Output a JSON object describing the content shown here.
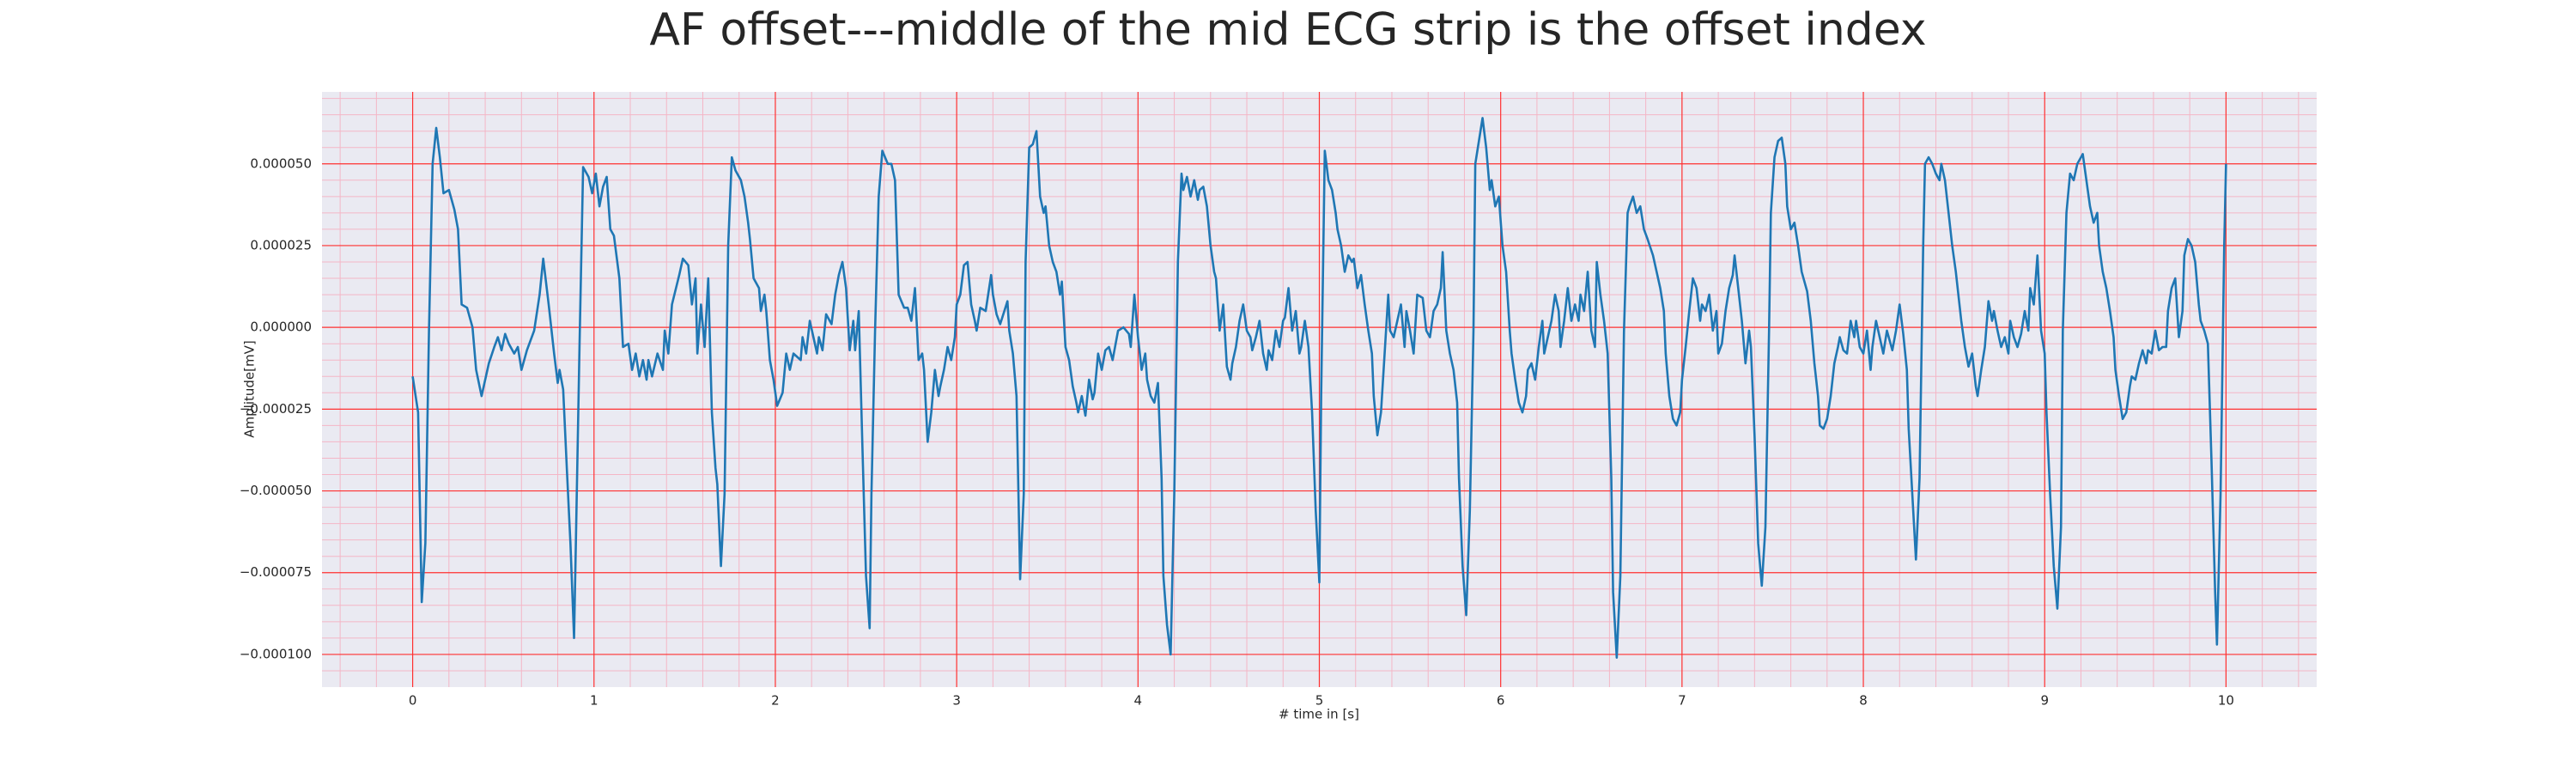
{
  "chart_data": {
    "type": "line",
    "title": "AF offset---middle of the mid ECG strip is the offset index",
    "xlabel": "# time in [s]",
    "ylabel": "Amplitude[mV]",
    "color": "#1f77b4",
    "grid": true,
    "xlim": [
      -0.5,
      10.5
    ],
    "ylim": [
      -0.00011,
      7.2e-05
    ],
    "xticks": [
      0,
      1,
      2,
      3,
      4,
      5,
      6,
      7,
      8,
      9,
      10
    ],
    "yticks": [
      {
        "value": -0.0001,
        "label": "−0.000100"
      },
      {
        "value": -7.5e-05,
        "label": "−0.000075"
      },
      {
        "value": -5e-05,
        "label": "−0.000050"
      },
      {
        "value": -2.5e-05,
        "label": "−0.000025"
      },
      {
        "value": 0,
        "label": "0.000000"
      },
      {
        "value": 2.5e-05,
        "label": "0.000025"
      },
      {
        "value": 5e-05,
        "label": "0.000050"
      }
    ],
    "minor_xticks": [
      -0.4,
      -0.2,
      0.2,
      0.4,
      0.6,
      0.8,
      1.2,
      1.4,
      1.6,
      1.8,
      2.2,
      2.4,
      2.6,
      2.8,
      3.2,
      3.4,
      3.6,
      3.8,
      4.2,
      4.4,
      4.6,
      4.8,
      5.2,
      5.4,
      5.6,
      5.8,
      6.2,
      6.4,
      6.6,
      6.8,
      7.2,
      7.4,
      7.6,
      7.8,
      8.2,
      8.4,
      8.6,
      8.8,
      9.2,
      9.4,
      9.6,
      9.8,
      10.2,
      10.4
    ],
    "minor_yticks": [
      -0.000105,
      -9.5e-05,
      -9e-05,
      -8.5e-05,
      -8e-05,
      -7e-05,
      -6.5e-05,
      -6e-05,
      -5.5e-05,
      -4.5e-05,
      -4e-05,
      -3.5e-05,
      -3e-05,
      -2e-05,
      -1.5e-05,
      -1e-05,
      -5e-06,
      5e-06,
      1e-05,
      1.5e-05,
      2e-05,
      3e-05,
      3.5e-05,
      4e-05,
      4.5e-05,
      5.5e-05,
      6e-05,
      6.5e-05,
      7e-05
    ],
    "x": [
      0,
      0.03,
      0.05,
      0.07,
      0.09,
      0.11,
      0.13,
      0.15,
      0.17,
      0.2,
      0.23,
      0.25,
      0.27,
      0.3,
      0.33,
      0.35,
      0.38,
      0.42,
      0.45,
      0.47,
      0.49,
      0.51,
      0.53,
      0.56,
      0.58,
      0.6,
      0.63,
      0.67,
      0.7,
      0.72,
      0.75,
      0.78,
      0.8,
      0.81,
      0.83,
      0.85,
      0.87,
      0.89,
      0.9,
      0.92,
      0.94,
      0.97,
      0.99,
      1.01,
      1.03,
      1.05,
      1.07,
      1.09,
      1.11,
      1.14,
      1.16,
      1.19,
      1.21,
      1.23,
      1.25,
      1.27,
      1.29,
      1.3,
      1.32,
      1.35,
      1.38,
      1.39,
      1.41,
      1.43,
      1.47,
      1.49,
      1.52,
      1.54,
      1.56,
      1.57,
      1.59,
      1.61,
      1.63,
      1.65,
      1.67,
      1.68,
      1.7,
      1.72,
      1.74,
      1.76,
      1.78,
      1.81,
      1.83,
      1.85,
      1.86,
      1.88,
      1.91,
      1.92,
      1.94,
      1.95,
      1.97,
      1.99,
      2.01,
      2.04,
      2.06,
      2.08,
      2.1,
      2.14,
      2.15,
      2.17,
      2.19,
      2.21,
      2.23,
      2.24,
      2.26,
      2.28,
      2.31,
      2.33,
      2.35,
      2.37,
      2.39,
      2.41,
      2.43,
      2.44,
      2.46,
      2.48,
      2.5,
      2.52,
      2.53,
      2.55,
      2.57,
      2.59,
      2.62,
      2.64,
      2.66,
      2.68,
      2.71,
      2.73,
      2.75,
      2.77,
      2.79,
      2.81,
      2.82,
      2.84,
      2.86,
      2.88,
      2.9,
      2.91,
      2.93,
      2.95,
      2.97,
      2.99,
      3.0,
      3.02,
      3.04,
      3.06,
      3.08,
      3.1,
      3.11,
      3.13,
      3.16,
      3.19,
      3.2,
      3.22,
      3.24,
      3.28,
      3.29,
      3.31,
      3.33,
      3.35,
      3.37,
      3.38,
      3.4,
      3.42,
      3.44,
      3.46,
      3.48,
      3.49,
      3.51,
      3.53,
      3.55,
      3.57,
      3.58,
      3.6,
      3.62,
      3.64,
      3.66,
      3.67,
      3.69,
      3.71,
      3.73,
      3.75,
      3.76,
      3.78,
      3.8,
      3.82,
      3.84,
      3.86,
      3.87,
      3.89,
      3.92,
      3.95,
      3.96,
      3.98,
      4.0,
      4.02,
      4.04,
      4.05,
      4.07,
      4.09,
      4.11,
      4.13,
      4.14,
      4.16,
      4.18,
      4.2,
      4.22,
      4.24,
      4.25,
      4.27,
      4.29,
      4.31,
      4.33,
      4.34,
      4.36,
      4.38,
      4.4,
      4.42,
      4.43,
      4.45,
      4.47,
      4.49,
      4.51,
      4.52,
      4.54,
      4.56,
      4.58,
      4.6,
      4.62,
      4.63,
      4.65,
      4.67,
      4.69,
      4.71,
      4.72,
      4.74,
      4.76,
      4.78,
      4.8,
      4.81,
      4.83,
      4.85,
      4.87,
      4.89,
      4.9,
      4.92,
      4.94,
      4.96,
      4.98,
      5.0,
      5.01,
      5.03,
      5.05,
      5.07,
      5.09,
      5.1,
      5.12,
      5.14,
      5.16,
      5.18,
      5.19,
      5.21,
      5.23,
      5.25,
      5.27,
      5.29,
      5.3,
      5.32,
      5.34,
      5.36,
      5.38,
      5.39,
      5.41,
      5.43,
      5.45,
      5.47,
      5.48,
      5.5,
      5.52,
      5.54,
      5.57,
      5.59,
      5.61,
      5.63,
      5.65,
      5.67,
      5.68,
      5.7,
      5.72,
      5.74,
      5.76,
      5.77,
      5.79,
      5.81,
      5.83,
      5.85,
      5.86,
      5.88,
      5.9,
      5.92,
      5.94,
      5.95,
      5.97,
      5.99,
      6.01,
      6.03,
      6.05,
      6.06,
      6.08,
      6.1,
      6.12,
      6.14,
      6.15,
      6.17,
      6.19,
      6.21,
      6.23,
      6.24,
      6.26,
      6.28,
      6.3,
      6.32,
      6.33,
      6.35,
      6.37,
      6.39,
      6.41,
      6.43,
      6.44,
      6.46,
      6.48,
      6.5,
      6.52,
      6.53,
      6.55,
      6.57,
      6.59,
      6.61,
      6.62,
      6.64,
      6.66,
      6.68,
      6.7,
      6.71,
      6.73,
      6.75,
      6.77,
      6.79,
      6.81,
      6.84,
      6.86,
      6.88,
      6.9,
      6.91,
      6.93,
      6.95,
      6.97,
      6.99,
      7.0,
      7.02,
      7.04,
      7.06,
      7.08,
      7.1,
      7.11,
      7.13,
      7.15,
      7.17,
      7.19,
      7.2,
      7.22,
      7.24,
      7.26,
      7.28,
      7.29,
      7.31,
      7.33,
      7.35,
      7.37,
      7.38,
      7.4,
      7.42,
      7.44,
      7.46,
      7.48,
      7.49,
      7.51,
      7.53,
      7.55,
      7.57,
      7.58,
      7.6,
      7.62,
      7.64,
      7.66,
      7.67,
      7.69,
      7.71,
      7.73,
      7.75,
      7.76,
      7.78,
      7.8,
      7.82,
      7.84,
      7.86,
      7.87,
      7.89,
      7.91,
      7.93,
      7.95,
      7.96,
      7.98,
      8.0,
      8.02,
      8.04,
      8.05,
      8.07,
      8.09,
      8.11,
      8.13,
      8.14,
      8.16,
      8.18,
      8.2,
      8.22,
      8.24,
      8.25,
      8.27,
      8.29,
      8.31,
      8.33,
      8.34,
      8.36,
      8.38,
      8.4,
      8.42,
      8.43,
      8.45,
      8.47,
      8.49,
      8.51,
      8.53,
      8.54,
      8.56,
      8.58,
      8.6,
      8.62,
      8.63,
      8.65,
      8.67,
      8.69,
      8.71,
      8.72,
      8.74,
      8.76,
      8.78,
      8.8,
      8.81,
      8.83,
      8.85,
      8.87,
      8.89,
      8.91,
      8.92,
      8.94,
      8.96,
      8.98,
      9.0,
      9.01,
      9.03,
      9.05,
      9.07,
      9.09,
      9.1,
      9.12,
      9.14,
      9.16,
      9.18,
      9.19,
      9.21,
      9.23,
      9.25,
      9.27,
      9.29,
      9.3,
      9.32,
      9.34,
      9.36,
      9.38,
      9.39,
      9.41,
      9.43,
      9.45,
      9.47,
      9.48,
      9.5,
      9.52,
      9.54,
      9.56,
      9.57,
      9.59,
      9.61,
      9.63,
      9.65,
      9.67,
      9.68,
      9.7,
      9.72,
      9.74,
      9.76,
      9.77,
      9.79,
      9.81,
      9.83,
      9.85,
      9.86,
      9.88,
      9.9,
      9.92,
      9.94,
      9.95,
      9.97,
      9.99,
      10.0
    ],
    "values": [
      -1.5e-05,
      -2.6e-05,
      -8.4e-05,
      -6.6e-05,
      -1e-06,
      5e-05,
      6.1e-05,
      5.2e-05,
      4.1e-05,
      4.2e-05,
      3.6e-05,
      3e-05,
      7e-06,
      6e-06,
      0,
      -1.3e-05,
      -2.1e-05,
      -1.1e-05,
      -6e-06,
      -3e-06,
      -7e-06,
      -2e-06,
      -5e-06,
      -8e-06,
      -6e-06,
      -1.3e-05,
      -7e-06,
      -1e-06,
      1e-05,
      2.1e-05,
      7e-06,
      -8e-06,
      -1.7e-05,
      -1.3e-05,
      -1.9e-05,
      -4.3e-05,
      -6.6e-05,
      -9.5e-05,
      -6.6e-05,
      -6e-06,
      4.9e-05,
      4.6e-05,
      4.1e-05,
      4.7e-05,
      3.7e-05,
      4.3e-05,
      4.6e-05,
      3e-05,
      2.8e-05,
      1.5e-05,
      -6e-06,
      -5e-06,
      -1.3e-05,
      -8e-06,
      -1.5e-05,
      -1e-05,
      -1.6e-05,
      -1e-05,
      -1.5e-05,
      -8e-06,
      -1.3e-05,
      -1e-06,
      -8e-06,
      7e-06,
      1.6e-05,
      2.1e-05,
      1.9e-05,
      7e-06,
      1.5e-05,
      -8e-06,
      7e-06,
      -6e-06,
      1.5e-05,
      -2.6e-05,
      -4.3e-05,
      -4.8e-05,
      -7.3e-05,
      -5.1e-05,
      2.5e-05,
      5.2e-05,
      4.8e-05,
      4.5e-05,
      4e-05,
      3.2e-05,
      2.7e-05,
      1.5e-05,
      1.2e-05,
      5e-06,
      1e-05,
      5e-06,
      -1e-05,
      -1.6e-05,
      -2.4e-05,
      -2e-05,
      -8e-06,
      -1.3e-05,
      -8e-06,
      -1e-05,
      -3e-06,
      -8e-06,
      2e-06,
      -3e-06,
      -8e-06,
      -3e-06,
      -7e-06,
      4e-06,
      1e-06,
      1e-05,
      1.6e-05,
      2e-05,
      1.2e-05,
      -7e-06,
      2e-06,
      -7e-06,
      5e-06,
      -3.6e-05,
      -7.6e-05,
      -9.2e-05,
      -5.1e-05,
      -1e-06,
      4e-05,
      5.4e-05,
      5e-05,
      5e-05,
      4.5e-05,
      1e-05,
      6e-06,
      6e-06,
      2e-06,
      1.2e-05,
      -1e-05,
      -8e-06,
      -1.3e-05,
      -3.5e-05,
      -2.6e-05,
      -1.3e-05,
      -2.1e-05,
      -1.8e-05,
      -1.3e-05,
      -6e-06,
      -1e-05,
      -3e-06,
      7e-06,
      1e-05,
      1.9e-05,
      2e-05,
      7e-06,
      2e-06,
      -1e-06,
      6e-06,
      5e-06,
      1.6e-05,
      1e-05,
      4e-06,
      1e-06,
      8e-06,
      -1e-06,
      -8e-06,
      -2.1e-05,
      -7.7e-05,
      -5.1e-05,
      2e-05,
      5.5e-05,
      5.6e-05,
      6e-05,
      4e-05,
      3.5e-05,
      3.7e-05,
      2.5e-05,
      2e-05,
      1.7e-05,
      1e-05,
      1.4e-05,
      -6e-06,
      -1e-05,
      -1.8e-05,
      -2.3e-05,
      -2.6e-05,
      -2.1e-05,
      -2.7e-05,
      -1.6e-05,
      -2.2e-05,
      -2e-05,
      -8e-06,
      -1.3e-05,
      -7e-06,
      -6e-06,
      -1e-05,
      -7e-06,
      -1e-06,
      0,
      -2e-06,
      -6e-06,
      1e-05,
      -3e-06,
      -1.3e-05,
      -8e-06,
      -1.6e-05,
      -2.1e-05,
      -2.3e-05,
      -1.7e-05,
      -4.6e-05,
      -7.6e-05,
      -9.1e-05,
      -0.0001,
      -5.1e-05,
      2e-05,
      4.7e-05,
      4.2e-05,
      4.6e-05,
      4e-05,
      4.5e-05,
      3.9e-05,
      4.2e-05,
      4.3e-05,
      3.7e-05,
      2.5e-05,
      1.7e-05,
      1.5e-05,
      -1e-06,
      7e-06,
      -1.2e-05,
      -1.6e-05,
      -1.1e-05,
      -6e-06,
      2e-06,
      7e-06,
      -1e-06,
      -3e-06,
      -7e-06,
      -3e-06,
      2e-06,
      -8e-06,
      -1.3e-05,
      -7e-06,
      -1e-05,
      -1e-06,
      -6e-06,
      2e-06,
      3e-06,
      1.2e-05,
      -1e-06,
      5e-06,
      -8e-06,
      -6e-06,
      2e-06,
      -6e-06,
      -2.6e-05,
      -5.6e-05,
      -7.8e-05,
      -2.1e-05,
      5.4e-05,
      4.5e-05,
      4.2e-05,
      3.5e-05,
      3e-05,
      2.5e-05,
      1.7e-05,
      2.2e-05,
      2e-05,
      2.1e-05,
      1.2e-05,
      1.6e-05,
      7e-06,
      -1e-06,
      -8e-06,
      -2.1e-05,
      -3.3e-05,
      -2.6e-05,
      -8e-06,
      1e-05,
      -1e-06,
      -3e-06,
      2e-06,
      7e-06,
      -6e-06,
      5e-06,
      -1e-06,
      -8e-06,
      1e-05,
      9e-06,
      -1e-06,
      -3e-06,
      5e-06,
      7e-06,
      1.2e-05,
      2.3e-05,
      -1e-06,
      -8e-06,
      -1.3e-05,
      -2.3e-05,
      -4.6e-05,
      -7.3e-05,
      -8.8e-05,
      -5.6e-05,
      -1e-06,
      5e-05,
      5.7e-05,
      6.4e-05,
      5.5e-05,
      4.2e-05,
      4.5e-05,
      3.7e-05,
      4e-05,
      2.5e-05,
      1.7e-05,
      -1e-06,
      -8e-06,
      -1.6e-05,
      -2.3e-05,
      -2.6e-05,
      -2.1e-05,
      -1.3e-05,
      -1.1e-05,
      -1.6e-05,
      -6e-06,
      2e-06,
      -8e-06,
      -3e-06,
      2e-06,
      1e-05,
      5e-06,
      -6e-06,
      2e-06,
      1.2e-05,
      2e-06,
      7e-06,
      2e-06,
      1e-05,
      5e-06,
      1.7e-05,
      -1e-06,
      -6e-06,
      2e-05,
      1e-05,
      2e-06,
      -8e-06,
      -4.6e-05,
      -8.1e-05,
      -0.000101,
      -7.6e-05,
      -1e-06,
      3.5e-05,
      3.7e-05,
      4e-05,
      3.5e-05,
      3.7e-05,
      3e-05,
      2.7e-05,
      2.2e-05,
      1.7e-05,
      1.2e-05,
      5e-06,
      -8e-06,
      -2.1e-05,
      -2.8e-05,
      -3e-05,
      -2.6e-05,
      -1.6e-05,
      -6e-06,
      5e-06,
      1.5e-05,
      1.2e-05,
      2e-06,
      7e-06,
      5e-06,
      1e-05,
      -1e-06,
      5e-06,
      -8e-06,
      -5e-06,
      5e-06,
      1.2e-05,
      1.6e-05,
      2.2e-05,
      1.2e-05,
      2e-06,
      -1.1e-05,
      -1e-06,
      -6e-06,
      -3.3e-05,
      -6.6e-05,
      -7.9e-05,
      -6.1e-05,
      -1e-06,
      3.5e-05,
      5.2e-05,
      5.7e-05,
      5.8e-05,
      5e-05,
      3.7e-05,
      3e-05,
      3.2e-05,
      2.5e-05,
      1.7e-05,
      1.5e-05,
      1.1e-05,
      2e-06,
      -1.1e-05,
      -2.1e-05,
      -3e-05,
      -3.1e-05,
      -2.8e-05,
      -2.1e-05,
      -1.1e-05,
      -6e-06,
      -3e-06,
      -7e-06,
      -8e-06,
      2e-06,
      -3e-06,
      2e-06,
      -6e-06,
      -8e-06,
      -1e-06,
      -1.3e-05,
      -6e-06,
      2e-06,
      -3e-06,
      -8e-06,
      -1e-06,
      -3e-06,
      -7e-06,
      -1e-06,
      7e-06,
      -2e-06,
      -1.3e-05,
      -3.1e-05,
      -5.1e-05,
      -7.1e-05,
      -4.6e-05,
      2.5e-05,
      5e-05,
      5.2e-05,
      5e-05,
      4.7e-05,
      4.5e-05,
      5e-05,
      4.5e-05,
      3.5e-05,
      2.5e-05,
      1.7e-05,
      7e-06,
      2e-06,
      -6e-06,
      -1.2e-05,
      -8e-06,
      -1.8e-05,
      -2.1e-05,
      -1.3e-05,
      -6e-06,
      8e-06,
      2e-06,
      5e-06,
      -1e-06,
      -6e-06,
      -3e-06,
      -8e-06,
      2e-06,
      -3e-06,
      -6e-06,
      -2e-06,
      5e-06,
      -1e-06,
      1.2e-05,
      7e-06,
      2.2e-05,
      -1e-06,
      -8e-06,
      -2.6e-05,
      -5.1e-05,
      -7.3e-05,
      -8.6e-05,
      -6.1e-05,
      -1e-06,
      3.5e-05,
      4.7e-05,
      4.5e-05,
      5e-05,
      5.1e-05,
      5.3e-05,
      4.5e-05,
      3.7e-05,
      3.2e-05,
      3.5e-05,
      2.5e-05,
      1.7e-05,
      1.2e-05,
      5e-06,
      -3e-06,
      -1.3e-05,
      -2.1e-05,
      -2.8e-05,
      -2.6e-05,
      -1.8e-05,
      -1.5e-05,
      -1.6e-05,
      -1.1e-05,
      -7e-06,
      -1.1e-05,
      -7e-06,
      -8e-06,
      -1e-06,
      -7e-06,
      -6e-06,
      -6e-06,
      5e-06,
      1.2e-05,
      1.5e-05,
      -3e-06,
      5e-06,
      2.2e-05,
      2.7e-05,
      2.5e-05,
      2e-05,
      7e-06,
      2e-06,
      -1e-06,
      -5e-06,
      -4.1e-05,
      -8.1e-05,
      -9.7e-05,
      -5.1e-05,
      2.5e-05,
      5e-05
    ]
  }
}
